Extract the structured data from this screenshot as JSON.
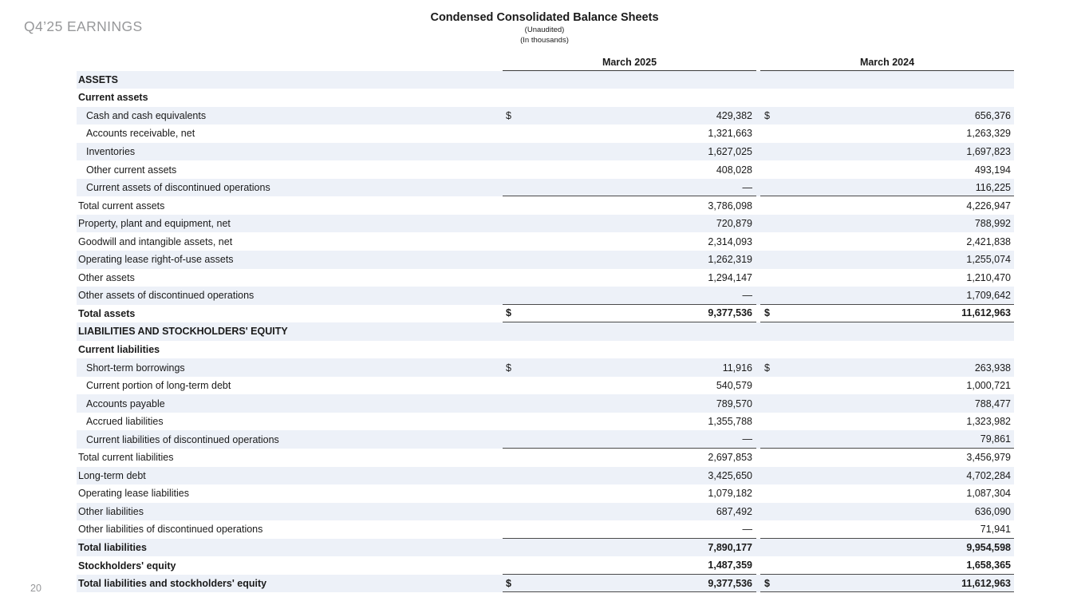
{
  "slide": {
    "eyebrow": "Q4’25 EARNINGS",
    "page_number": "20",
    "title": "Condensed Consolidated Balance Sheets",
    "subtitle1": "(Unaudited)",
    "subtitle2": "(In thousands)"
  },
  "colors": {
    "band": "#edf1f8",
    "rule": "#4a4a4a",
    "rule_dark": "#3b3b3b",
    "text": "#1a1a1a",
    "muted": "#97989a"
  },
  "table": {
    "currency_symbol": "$",
    "columns": [
      "March 2025",
      "March 2024"
    ],
    "rows": [
      {
        "label": "ASSETS",
        "type": "section"
      },
      {
        "label": "Current assets",
        "type": "subsection"
      },
      {
        "label": "Cash and cash equivalents",
        "indent": true,
        "dollar": true,
        "v1": "429,382",
        "v2": "656,376"
      },
      {
        "label": "Accounts receivable, net",
        "indent": true,
        "v1": "1,321,663",
        "v2": "1,263,329"
      },
      {
        "label": "Inventories",
        "indent": true,
        "v1": "1,627,025",
        "v2": "1,697,823"
      },
      {
        "label": "Other current assets",
        "indent": true,
        "v1": "408,028",
        "v2": "493,194"
      },
      {
        "label": "Current assets of discontinued operations",
        "indent": true,
        "v1": "—",
        "v2": "116,225",
        "rule_below": true
      },
      {
        "label": "Total current assets",
        "v1": "3,786,098",
        "v2": "4,226,947"
      },
      {
        "label": "Property, plant and equipment, net",
        "v1": "720,879",
        "v2": "788,992"
      },
      {
        "label": "Goodwill and intangible assets, net",
        "v1": "2,314,093",
        "v2": "2,421,838"
      },
      {
        "label": "Operating lease right-of-use assets",
        "v1": "1,262,319",
        "v2": "1,255,074"
      },
      {
        "label": "Other assets",
        "v1": "1,294,147",
        "v2": "1,210,470"
      },
      {
        "label": "Other assets of discontinued operations",
        "v1": "—",
        "v2": "1,709,642",
        "rule_below": true
      },
      {
        "label": "Total assets",
        "type": "total",
        "dollar": true,
        "v1": "9,377,536",
        "v2": "11,612,963",
        "rule_below": true
      },
      {
        "label": "LIABILITIES AND STOCKHOLDERS' EQUITY",
        "type": "section"
      },
      {
        "label": "Current liabilities",
        "type": "subsection"
      },
      {
        "label": "Short-term borrowings",
        "indent": true,
        "dollar": true,
        "v1": "11,916",
        "v2": "263,938"
      },
      {
        "label": "Current portion of long-term debt",
        "indent": true,
        "v1": "540,579",
        "v2": "1,000,721"
      },
      {
        "label": "Accounts payable",
        "indent": true,
        "v1": "789,570",
        "v2": "788,477"
      },
      {
        "label": "Accrued liabilities",
        "indent": true,
        "v1": "1,355,788",
        "v2": "1,323,982"
      },
      {
        "label": "Current liabilities of discontinued operations",
        "indent": true,
        "v1": "—",
        "v2": "79,861",
        "rule_below": true
      },
      {
        "label": "Total current liabilities",
        "v1": "2,697,853",
        "v2": "3,456,979"
      },
      {
        "label": "Long-term debt",
        "v1": "3,425,650",
        "v2": "4,702,284"
      },
      {
        "label": "Operating lease liabilities",
        "v1": "1,079,182",
        "v2": "1,087,304"
      },
      {
        "label": "Other liabilities",
        "v1": "687,492",
        "v2": "636,090"
      },
      {
        "label": "Other liabilities of discontinued operations",
        "v1": "—",
        "v2": "71,941",
        "rule_below": true
      },
      {
        "label": "Total liabilities",
        "type": "total",
        "v1": "7,890,177",
        "v2": "9,954,598"
      },
      {
        "label": "Stockholders' equity",
        "type": "total",
        "v1": "1,487,359",
        "v2": "1,658,365",
        "rule_below": true
      },
      {
        "label": "Total liabilities and stockholders' equity",
        "type": "total",
        "dollar": true,
        "v1": "9,377,536",
        "v2": "11,612,963",
        "rule_below": true
      }
    ]
  }
}
